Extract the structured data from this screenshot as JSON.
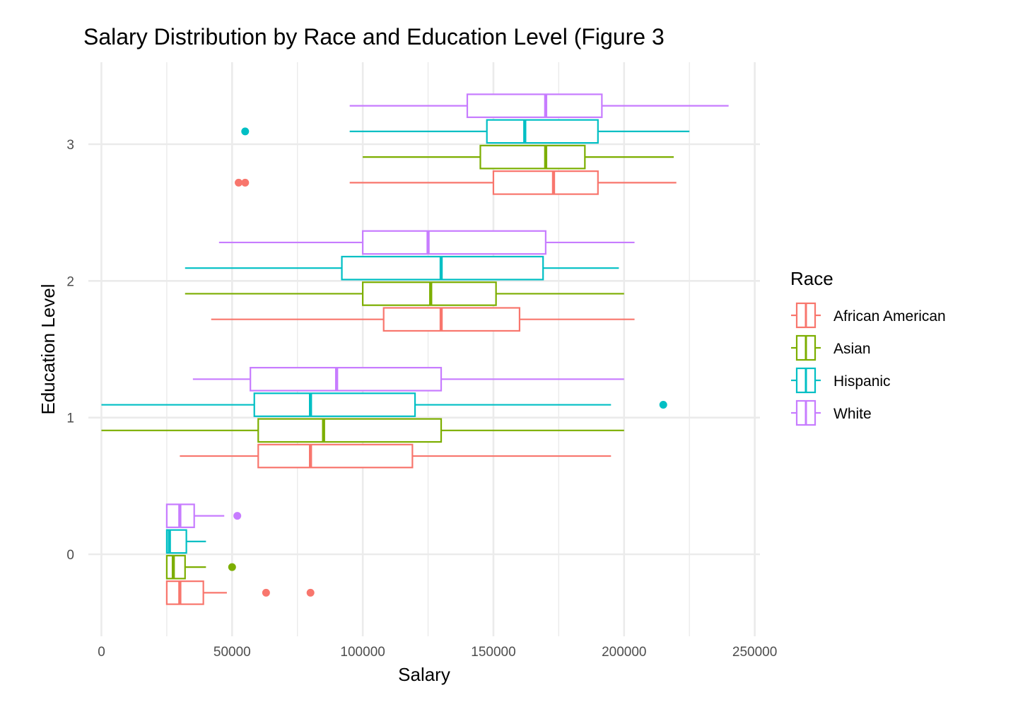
{
  "chart_data": {
    "type": "boxplot",
    "title": "Salary Distribution by Race and Education Level (Figure 3",
    "xlabel": "Salary",
    "ylabel": "Education Level",
    "xlim": [
      -5000,
      252000
    ],
    "ylim": [
      -0.6,
      3.6
    ],
    "x_ticks": [
      0,
      50000,
      100000,
      150000,
      200000,
      250000
    ],
    "y_ticks": [
      0,
      1,
      2,
      3
    ],
    "grid": true,
    "legend": {
      "title": "Race",
      "position": "right"
    },
    "categories": [
      0,
      1,
      2,
      3
    ],
    "series": [
      {
        "name": "African American",
        "color": "#F8766D",
        "boxes": [
          {
            "level": 0,
            "min": 25000,
            "q1": 25000,
            "median": 30000,
            "q3": 39000,
            "max": 48000,
            "outliers": [
              63000,
              80000
            ]
          },
          {
            "level": 1,
            "min": 30000,
            "q1": 60000,
            "median": 80000,
            "q3": 119000,
            "max": 195000,
            "outliers": []
          },
          {
            "level": 2,
            "min": 42000,
            "q1": 108000,
            "median": 130000,
            "q3": 160000,
            "max": 204000,
            "outliers": []
          },
          {
            "level": 3,
            "min": 95000,
            "q1": 150000,
            "median": 173000,
            "q3": 190000,
            "max": 220000,
            "outliers": [
              52500,
              55000
            ]
          }
        ]
      },
      {
        "name": "Asian",
        "color": "#7CAE00",
        "boxes": [
          {
            "level": 0,
            "min": 25000,
            "q1": 25000,
            "median": 27500,
            "q3": 32000,
            "max": 40000,
            "outliers": [
              50000
            ]
          },
          {
            "level": 1,
            "min": 0,
            "q1": 60000,
            "median": 85000,
            "q3": 130000,
            "max": 200000,
            "outliers": []
          },
          {
            "level": 2,
            "min": 32000,
            "q1": 100000,
            "median": 126000,
            "q3": 151000,
            "max": 200000,
            "outliers": []
          },
          {
            "level": 3,
            "min": 100000,
            "q1": 145000,
            "median": 170000,
            "q3": 185000,
            "max": 219000,
            "outliers": []
          }
        ]
      },
      {
        "name": "Hispanic",
        "color": "#00BFC4",
        "boxes": [
          {
            "level": 0,
            "min": 25000,
            "q1": 25000,
            "median": 26000,
            "q3": 32500,
            "max": 40000,
            "outliers": []
          },
          {
            "level": 1,
            "min": 0,
            "q1": 58500,
            "median": 80000,
            "q3": 120000,
            "max": 195000,
            "outliers": [
              215000
            ]
          },
          {
            "level": 2,
            "min": 32000,
            "q1": 92000,
            "median": 130000,
            "q3": 169000,
            "max": 198000,
            "outliers": []
          },
          {
            "level": 3,
            "min": 95000,
            "q1": 147500,
            "median": 162000,
            "q3": 190000,
            "max": 225000,
            "outliers": [
              55000
            ]
          }
        ]
      },
      {
        "name": "White",
        "color": "#C77CFF",
        "boxes": [
          {
            "level": 0,
            "min": 25000,
            "q1": 25000,
            "median": 30000,
            "q3": 35500,
            "max": 47000,
            "outliers": [
              52000
            ]
          },
          {
            "level": 1,
            "min": 35000,
            "q1": 57000,
            "median": 90000,
            "q3": 130000,
            "max": 200000,
            "outliers": []
          },
          {
            "level": 2,
            "min": 45000,
            "q1": 100000,
            "median": 125000,
            "q3": 170000,
            "max": 204000,
            "outliers": []
          },
          {
            "level": 3,
            "min": 95000,
            "q1": 140000,
            "median": 170000,
            "q3": 191500,
            "max": 240000,
            "outliers": []
          }
        ]
      }
    ]
  }
}
